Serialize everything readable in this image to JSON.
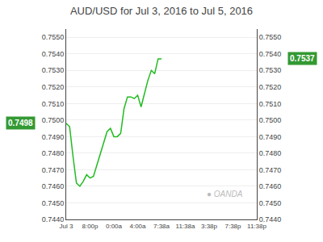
{
  "chart_data": {
    "type": "line",
    "title": "AUD/USD for Jul 3, 2016 to Jul 5, 2016",
    "x": [
      0,
      1,
      2,
      3,
      4,
      5,
      6,
      7,
      8,
      9,
      10,
      11,
      12,
      13,
      14,
      15,
      16,
      17,
      18,
      19,
      20,
      21,
      22,
      23,
      24,
      25,
      26,
      27,
      28
    ],
    "values": [
      0.7498,
      0.7496,
      0.7478,
      0.7462,
      0.746,
      0.7463,
      0.7467,
      0.7465,
      0.7466,
      0.7473,
      0.748,
      0.7487,
      0.7493,
      0.7495,
      0.749,
      0.749,
      0.7492,
      0.7507,
      0.7514,
      0.7514,
      0.7513,
      0.7515,
      0.7508,
      0.7516,
      0.7524,
      0.753,
      0.7528,
      0.7537,
      0.7537
    ],
    "color": "#22bb22",
    "xlim": [
      0,
      56
    ],
    "xticks": [
      {
        "value": 0,
        "label": "Jul 3"
      },
      {
        "value": 7,
        "label": "8:00p"
      },
      {
        "value": 14,
        "label": "0:00a"
      },
      {
        "value": 21,
        "label": "4:00a"
      },
      {
        "value": 28,
        "label": "7:38a"
      },
      {
        "value": 35,
        "label": "11:38a"
      },
      {
        "value": 42,
        "label": "3:38p"
      },
      {
        "value": 49,
        "label": "7:38p"
      },
      {
        "value": 56,
        "label": "11:38p"
      }
    ],
    "ylim": [
      0.744,
      0.7555
    ],
    "yticks": [
      {
        "value": 0.744,
        "label": "0.7440"
      },
      {
        "value": 0.745,
        "label": "0.7450"
      },
      {
        "value": 0.746,
        "label": "0.7460"
      },
      {
        "value": 0.747,
        "label": "0.7470"
      },
      {
        "value": 0.748,
        "label": "0.7480"
      },
      {
        "value": 0.749,
        "label": "0.7490"
      },
      {
        "value": 0.75,
        "label": "0.7500"
      },
      {
        "value": 0.751,
        "label": "0.7510"
      },
      {
        "value": 0.752,
        "label": "0.7520"
      },
      {
        "value": 0.753,
        "label": "0.7530"
      },
      {
        "value": 0.754,
        "label": "0.7540"
      },
      {
        "value": 0.755,
        "label": "0.7550"
      }
    ],
    "y2lim": [
      0.744,
      0.7555
    ],
    "y2ticks": [
      {
        "value": 0.744,
        "label": "0.7440"
      },
      {
        "value": 0.745,
        "label": "0.7450"
      },
      {
        "value": 0.746,
        "label": "0.7460"
      },
      {
        "value": 0.747,
        "label": "0.7470"
      },
      {
        "value": 0.748,
        "label": "0.7480"
      },
      {
        "value": 0.749,
        "label": "0.7490"
      },
      {
        "value": 0.75,
        "label": "0.7500"
      },
      {
        "value": 0.751,
        "label": "0.7510"
      },
      {
        "value": 0.752,
        "label": "0.7520"
      },
      {
        "value": 0.753,
        "label": "0.7530"
      },
      {
        "value": 0.754,
        "label": "0.7540"
      },
      {
        "value": 0.755,
        "label": "0.7550"
      }
    ],
    "grid": true,
    "annotations": [
      {
        "text": "0.7498",
        "y": 0.7498,
        "axis": "y",
        "color": "#339933"
      },
      {
        "text": "0.7537",
        "y": 0.7537,
        "axis": "y2",
        "color": "#339933"
      },
      {
        "text": "● OANDA",
        "color": "#bbbbbb"
      }
    ]
  }
}
